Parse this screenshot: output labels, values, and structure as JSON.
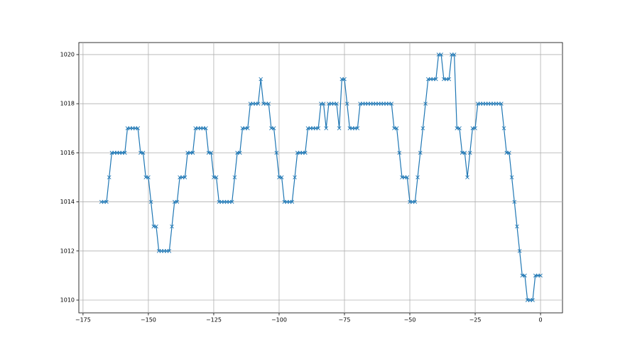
{
  "chart_data": {
    "type": "line",
    "grid": true,
    "marker": "x",
    "x": [
      -168,
      -167,
      -166,
      -165,
      -164,
      -163,
      -162,
      -161,
      -160,
      -159,
      -158,
      -157,
      -156,
      -155,
      -154,
      -153,
      -152,
      -151,
      -150,
      -149,
      -148,
      -147,
      -146,
      -145,
      -144,
      -143,
      -142,
      -141,
      -140,
      -139,
      -138,
      -137,
      -136,
      -135,
      -134,
      -133,
      -132,
      -131,
      -130,
      -129,
      -128,
      -127,
      -126,
      -125,
      -124,
      -123,
      -122,
      -121,
      -120,
      -119,
      -118,
      -117,
      -116,
      -115,
      -114,
      -113,
      -112,
      -111,
      -110,
      -109,
      -108,
      -107,
      -106,
      -105,
      -104,
      -103,
      -102,
      -101,
      -100,
      -99,
      -98,
      -97,
      -96,
      -95,
      -94,
      -93,
      -92,
      -91,
      -90,
      -89,
      -88,
      -87,
      -86,
      -85,
      -84,
      -83,
      -82,
      -81,
      -80,
      -79,
      -78,
      -77,
      -76,
      -75,
      -74,
      -73,
      -72,
      -71,
      -70,
      -69,
      -68,
      -67,
      -66,
      -65,
      -64,
      -63,
      -62,
      -61,
      -60,
      -59,
      -58,
      -57,
      -56,
      -55,
      -54,
      -53,
      -52,
      -51,
      -50,
      -49,
      -48,
      -47,
      -46,
      -45,
      -44,
      -43,
      -42,
      -41,
      -40,
      -39,
      -38,
      -37,
      -36,
      -35,
      -34,
      -33,
      -32,
      -31,
      -30,
      -29,
      -28,
      -27,
      -26,
      -25,
      -24,
      -23,
      -22,
      -21,
      -20,
      -19,
      -18,
      -17,
      -16,
      -15,
      -14,
      -13,
      -12,
      -11,
      -10,
      -9,
      -8,
      -7,
      -6,
      -5,
      -4,
      -3,
      -2,
      -1,
      0
    ],
    "series": [
      {
        "color": "#1f77b4",
        "values": [
          1014,
          1014,
          1014,
          1015,
          1016,
          1016,
          1016,
          1016,
          1016,
          1016,
          1017,
          1017,
          1017,
          1017,
          1017,
          1016,
          1016,
          1015,
          1015,
          1014,
          1013,
          1013,
          1012,
          1012,
          1012,
          1012,
          1012,
          1013,
          1014,
          1014,
          1015,
          1015,
          1015,
          1016,
          1016,
          1016,
          1017,
          1017,
          1017,
          1017,
          1017,
          1016,
          1016,
          1015,
          1015,
          1014,
          1014,
          1014,
          1014,
          1014,
          1014,
          1015,
          1016,
          1016,
          1017,
          1017,
          1017,
          1018,
          1018,
          1018,
          1018,
          1019,
          1018,
          1018,
          1018,
          1017,
          1017,
          1016,
          1015,
          1015,
          1014,
          1014,
          1014,
          1014,
          1015,
          1016,
          1016,
          1016,
          1016,
          1017,
          1017,
          1017,
          1017,
          1017,
          1018,
          1018,
          1017,
          1018,
          1018,
          1018,
          1018,
          1017,
          1019,
          1019,
          1018,
          1017,
          1017,
          1017,
          1017,
          1018,
          1018,
          1018,
          1018,
          1018,
          1018,
          1018,
          1018,
          1018,
          1018,
          1018,
          1018,
          1018,
          1017,
          1017,
          1016,
          1015,
          1015,
          1015,
          1014,
          1014,
          1014,
          1015,
          1016,
          1017,
          1018,
          1019,
          1019,
          1019,
          1019,
          1020,
          1020,
          1019,
          1019,
          1019,
          1020,
          1020,
          1017,
          1017,
          1016,
          1016,
          1015,
          1016,
          1017,
          1017,
          1018,
          1018,
          1018,
          1018,
          1018,
          1018,
          1018,
          1018,
          1018,
          1018,
          1017,
          1016,
          1016,
          1015,
          1014,
          1013,
          1012,
          1011,
          1011,
          1010,
          1010,
          1010,
          1011,
          1011,
          1011
        ]
      }
    ],
    "xlim": [
      -176.6,
      8.4
    ],
    "xticks": [
      {
        "value": -175,
        "label": "−175"
      },
      {
        "value": -150,
        "label": "−150"
      },
      {
        "value": -125,
        "label": "−125"
      },
      {
        "value": -100,
        "label": "−100"
      },
      {
        "value": -75,
        "label": "−75"
      },
      {
        "value": -50,
        "label": "−50"
      },
      {
        "value": -25,
        "label": "−25"
      },
      0
    ],
    "ylim": [
      1009.48,
      1020.49
    ],
    "yticks": [
      1010,
      1012,
      1014,
      1016,
      1018,
      1020
    ]
  }
}
